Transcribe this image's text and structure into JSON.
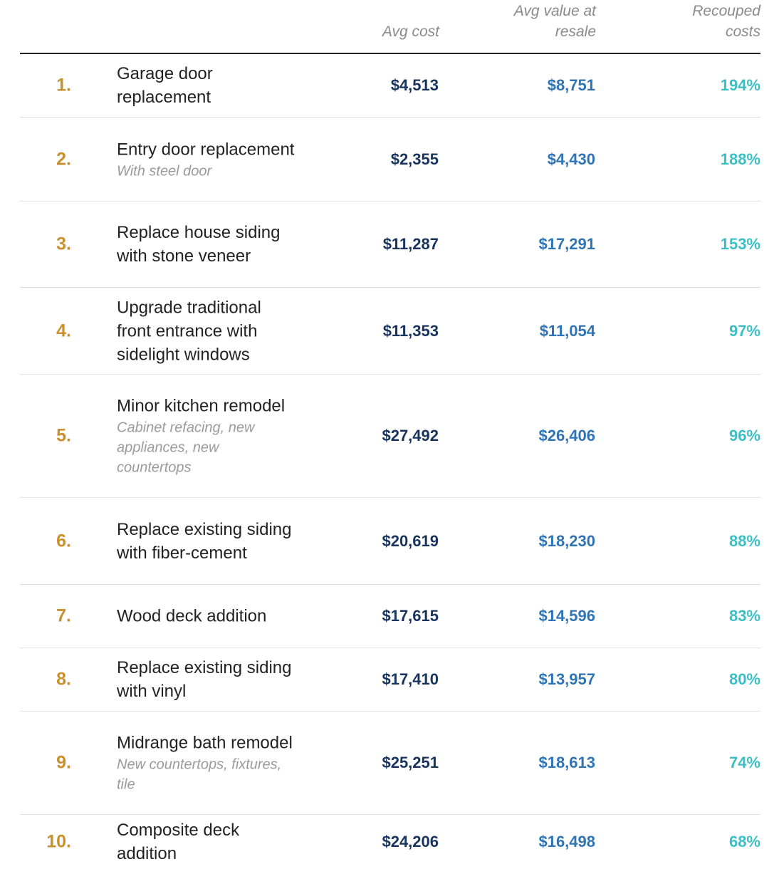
{
  "headers": {
    "cost": "Avg cost",
    "value": "Avg value at resale",
    "recouped": "Recouped costs"
  },
  "colors": {
    "rank": "#c9902e",
    "cost": "#17335e",
    "value": "#2f74b5",
    "recouped": "#3bbfc5",
    "note": "#9a9a9a"
  },
  "chart_data": {
    "type": "table",
    "columns": [
      "",
      "",
      "Avg cost",
      "Avg value at resale",
      "Recouped costs"
    ],
    "rows": [
      {
        "rank": "1.",
        "project": "Garage door replacement",
        "note": "",
        "cost": "$4,513",
        "value": "$8,751",
        "recouped": "194%"
      },
      {
        "rank": "2.",
        "project": "Entry door replacement",
        "note": "With steel door",
        "cost": "$2,355",
        "value": "$4,430",
        "recouped": "188%"
      },
      {
        "rank": "3.",
        "project": "Replace house siding with stone veneer",
        "note": "",
        "cost": "$11,287",
        "value": "$17,291",
        "recouped": "153%"
      },
      {
        "rank": "4.",
        "project": "Upgrade traditional front entrance with sidelight windows",
        "note": "",
        "cost": "$11,353",
        "value": "$11,054",
        "recouped": "97%"
      },
      {
        "rank": "5.",
        "project": "Minor kitchen remodel",
        "note": "Cabinet refacing, new appliances, new countertops",
        "cost": "$27,492",
        "value": "$26,406",
        "recouped": "96%"
      },
      {
        "rank": "6.",
        "project": "Replace existing siding with fiber-cement",
        "note": "",
        "cost": "$20,619",
        "value": "$18,230",
        "recouped": "88%"
      },
      {
        "rank": "7.",
        "project": "Wood deck addition",
        "note": "",
        "cost": "$17,615",
        "value": "$14,596",
        "recouped": "83%"
      },
      {
        "rank": "8.",
        "project": "Replace existing siding with vinyl",
        "note": "",
        "cost": "$17,410",
        "value": "$13,957",
        "recouped": "80%"
      },
      {
        "rank": "9.",
        "project": "Midrange bath remodel",
        "note": "New countertops, fixtures, tile",
        "cost": "$25,251",
        "value": "$18,613",
        "recouped": "74%"
      },
      {
        "rank": "10.",
        "project": "Composite deck addition",
        "note": "",
        "cost": "$24,206",
        "value": "$16,498",
        "recouped": "68%"
      }
    ]
  }
}
